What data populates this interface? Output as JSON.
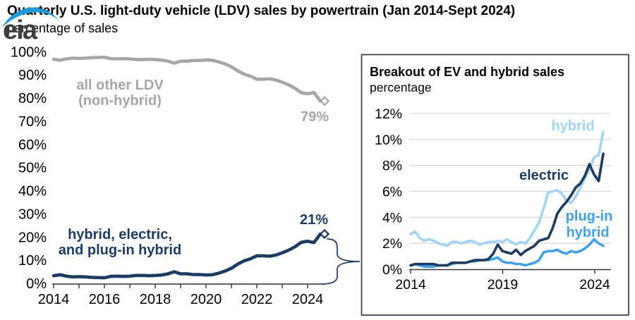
{
  "header": {
    "title": "Quarterly U.S. light-duty vehicle (LDV) sales by powertrain (Jan 2014-Sept 2024)",
    "subtitle": "percentage of sales",
    "logo_text": "eia"
  },
  "colors": {
    "navy": "#1d3a5f",
    "gray_line": "#a6a6a6",
    "hybrid_blue": "#a4d2f2",
    "plugin_blue": "#42a0e3",
    "grid": "#d9d9d9",
    "axis": "#333333",
    "inset_border": "#3d4653",
    "logo_blue": "#1f9ad7",
    "logo_text": "#3f3f3f"
  },
  "chart_data": [
    {
      "id": "main-chart",
      "type": "line",
      "x_unit": "quarter",
      "x_start": "2014Q1",
      "x_end": "2024Q3",
      "x_tick_labels": [
        "2014",
        "2016",
        "2018",
        "2020",
        "2022",
        "2024"
      ],
      "y_tick_labels": [
        "0%",
        "10%",
        "20%",
        "30%",
        "40%",
        "50%",
        "60%",
        "70%",
        "80%",
        "90%",
        "100%"
      ],
      "ylim": [
        0,
        100
      ],
      "grid": false,
      "series": [
        {
          "name": "all other LDV (non-hybrid)",
          "label_line1": "all other LDV",
          "label_line2": "(non-hybrid)",
          "color": "#a6a6a6",
          "end_label": "79%",
          "end_marker": "diamond",
          "values": [
            96.7,
            96.3,
            96.9,
            97.2,
            97.1,
            97.2,
            97.4,
            97.5,
            97.6,
            97.0,
            96.9,
            97.0,
            96.9,
            96.6,
            96.6,
            96.7,
            96.6,
            96.4,
            95.9,
            95.0,
            95.9,
            95.9,
            96.2,
            96.2,
            96.4,
            96.3,
            95.6,
            94.7,
            93.5,
            91.7,
            90.3,
            89.4,
            88.1,
            88.1,
            88.3,
            87.8,
            86.8,
            85.7,
            84.2,
            82.3,
            81.8,
            82.4,
            78.7
          ]
        },
        {
          "name": "hybrid, electric, and plug-in hybrid",
          "label_line1": "hybrid, electric,",
          "label_line2": "and plug-in hybrid",
          "color": "#1d3a5f",
          "end_label": "21%",
          "end_marker": "diamond",
          "values": [
            3.3,
            3.7,
            3.1,
            2.8,
            2.9,
            2.8,
            2.6,
            2.5,
            2.4,
            3.0,
            3.1,
            3.0,
            3.1,
            3.4,
            3.4,
            3.3,
            3.4,
            3.6,
            4.1,
            5.0,
            4.1,
            4.1,
            3.8,
            3.8,
            3.6,
            3.7,
            4.4,
            5.3,
            6.5,
            8.3,
            9.7,
            10.6,
            11.9,
            11.9,
            11.7,
            12.2,
            13.2,
            14.3,
            15.8,
            17.7,
            18.2,
            17.6,
            21.3
          ]
        }
      ]
    },
    {
      "id": "inset-chart",
      "type": "line",
      "title": "Breakout of EV and hybrid sales",
      "subtitle": "percentage",
      "x_unit": "quarter",
      "x_start": "2014Q1",
      "x_end": "2024Q3",
      "x_tick_labels": [
        "2014",
        "2019",
        "2024"
      ],
      "y_tick_labels": [
        "0%",
        "2%",
        "4%",
        "6%",
        "8%",
        "10%",
        "12%"
      ],
      "ylim": [
        0,
        12
      ],
      "grid": true,
      "series": [
        {
          "name": "hybrid",
          "label": "hybrid",
          "color": "#a4d2f2",
          "values": [
            2.7,
            2.9,
            2.4,
            2.2,
            2.3,
            2.2,
            2.0,
            1.9,
            1.8,
            2.1,
            2.1,
            2.0,
            2.1,
            2.2,
            2.1,
            1.9,
            2.0,
            2.1,
            2.1,
            2.2,
            2.1,
            2.3,
            2.1,
            1.9,
            2.1,
            2.0,
            2.4,
            3.0,
            3.6,
            4.7,
            5.9,
            6.0,
            6.1,
            5.8,
            5.3,
            5.1,
            5.6,
            6.3,
            7.0,
            7.7,
            8.6,
            8.8,
            10.6
          ]
        },
        {
          "name": "plug-in hybrid",
          "label_line1": "plug-in",
          "label_line2": "hybrid",
          "color": "#42a0e3",
          "values": [
            0.3,
            0.4,
            0.3,
            0.2,
            0.2,
            0.2,
            0.3,
            0.3,
            0.3,
            0.4,
            0.5,
            0.5,
            0.5,
            0.6,
            0.6,
            0.7,
            0.7,
            0.7,
            0.8,
            0.9,
            0.6,
            0.5,
            0.5,
            0.4,
            0.4,
            0.3,
            0.4,
            0.5,
            0.7,
            1.3,
            1.4,
            1.4,
            1.5,
            1.3,
            1.2,
            1.4,
            1.3,
            1.4,
            1.6,
            1.9,
            2.3,
            2.0,
            1.8
          ]
        },
        {
          "name": "electric",
          "label": "electric",
          "color": "#1d3a5f",
          "values": [
            0.3,
            0.4,
            0.4,
            0.4,
            0.4,
            0.4,
            0.3,
            0.3,
            0.3,
            0.5,
            0.5,
            0.5,
            0.5,
            0.6,
            0.7,
            0.7,
            0.7,
            0.8,
            1.2,
            1.9,
            1.4,
            1.3,
            1.2,
            1.5,
            1.1,
            1.4,
            1.6,
            1.8,
            2.2,
            2.3,
            2.4,
            3.2,
            4.3,
            4.8,
            5.2,
            5.7,
            6.3,
            6.6,
            7.2,
            8.1,
            7.3,
            6.8,
            8.9
          ]
        }
      ]
    }
  ]
}
